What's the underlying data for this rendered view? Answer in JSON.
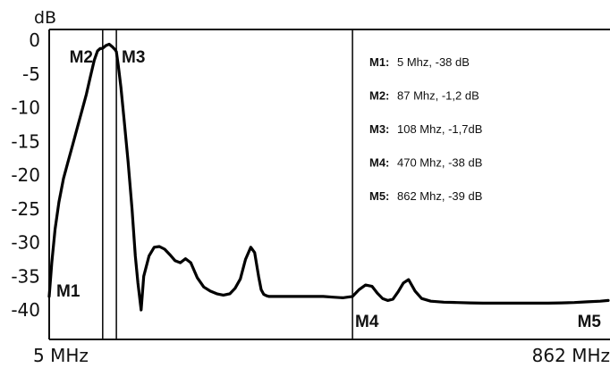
{
  "chart_data": {
    "type": "line",
    "ylabel": "dB",
    "ylim": [
      -45,
      0
    ],
    "yticks": [
      0,
      -5,
      -10,
      -15,
      -20,
      -25,
      -30,
      -35,
      -40
    ],
    "ytick_labels": [
      "0",
      "-5",
      "-10",
      "-15",
      "-20",
      "-25",
      "-30",
      "-35",
      "-40"
    ],
    "xlabels": {
      "left": "5 MHz",
      "right": "862 MHz"
    },
    "series": [
      {
        "x": [
          5,
          9,
          14,
          20,
          27,
          34,
          41,
          48,
          55,
          62,
          68,
          74,
          79,
          83,
          87,
          92,
          97,
          102,
          106,
          108,
          111,
          115,
          120,
          126,
          132,
          137,
          141,
          146,
          150,
          158,
          166,
          174,
          182,
          190,
          198,
          206,
          214,
          222,
          232,
          242,
          252,
          262,
          272,
          282,
          290,
          298,
          306,
          314,
          320,
          326,
          330,
          334,
          338,
          342,
          350,
          360,
          370,
          380,
          395,
          410,
          425,
          440,
          455,
          462,
          470,
          480,
          490,
          500,
          508,
          516,
          524,
          532,
          540,
          548,
          556,
          566,
          576,
          590,
          610,
          630,
          650,
          670,
          690,
          710,
          730,
          750,
          770,
          790,
          810,
          830,
          850,
          862
        ],
        "y": [
          -38,
          -33,
          -28,
          -24,
          -20.5,
          -18,
          -15.5,
          -13,
          -10.5,
          -8,
          -5.5,
          -3,
          -1.6,
          -1.25,
          -1.2,
          -0.8,
          -0.6,
          -1.0,
          -1.4,
          -1.7,
          -3.8,
          -7,
          -12,
          -18,
          -25,
          -32,
          -36,
          -40,
          -35,
          -32,
          -30.7,
          -30.6,
          -31,
          -31.8,
          -32.7,
          -33,
          -32.4,
          -33,
          -35.2,
          -36.6,
          -37.2,
          -37.6,
          -37.8,
          -37.6,
          -36.8,
          -35.4,
          -32.5,
          -30.7,
          -31.5,
          -35,
          -37,
          -37.7,
          -37.9,
          -38,
          -38,
          -38,
          -38,
          -38,
          -38,
          -38,
          -38,
          -38.1,
          -38.2,
          -38.1,
          -38,
          -37,
          -36.3,
          -36.5,
          -37.5,
          -38.3,
          -38.6,
          -38.4,
          -37.3,
          -36,
          -35.5,
          -37.2,
          -38.3,
          -38.7,
          -38.85,
          -38.9,
          -38.95,
          -39,
          -39,
          -39,
          -39,
          -39,
          -39,
          -38.95,
          -38.9,
          -38.8,
          -38.7,
          -38.6
        ]
      }
    ],
    "markers": [
      {
        "id": "M1",
        "name": "M1",
        "x": 5,
        "y": -38
      },
      {
        "id": "M2",
        "name": "M2",
        "x": 87,
        "y": -1.2
      },
      {
        "id": "M3",
        "name": "M3",
        "x": 108,
        "y": -1.7
      },
      {
        "id": "M4",
        "name": "M4",
        "x": 470,
        "y": -38
      },
      {
        "id": "M5",
        "name": "M5",
        "x": 862,
        "y": -39
      }
    ],
    "legend": [
      {
        "key": "M1:",
        "value": "5 Mhz, -38 dB"
      },
      {
        "key": "M2:",
        "value": "87 Mhz, -1,2 dB"
      },
      {
        "key": "M3:",
        "value": "108 Mhz, -1,7dB"
      },
      {
        "key": "M4:",
        "value": "470 Mhz, -38 dB"
      },
      {
        "key": "M5:",
        "value": "862 Mhz, -39 dB"
      }
    ],
    "legend_position": "top-right",
    "grid": false
  }
}
